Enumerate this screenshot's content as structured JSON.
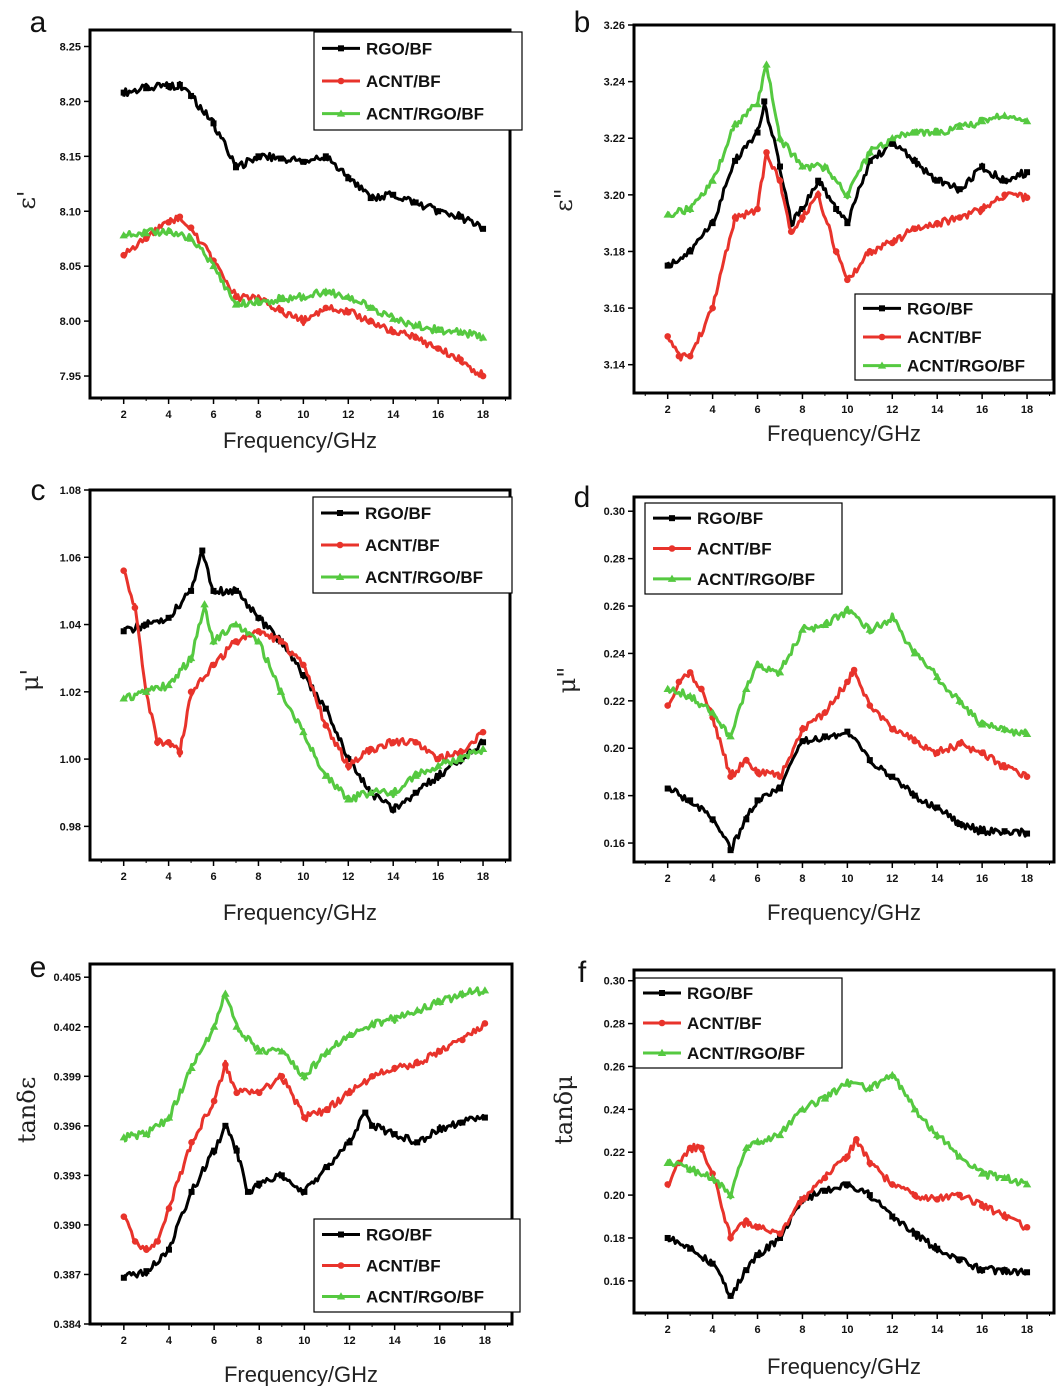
{
  "chart_data": [
    {
      "type": "line",
      "panel_label": "a",
      "xlabel": "Frequency/GHz",
      "ylabel": "ε'",
      "xlim": [
        0.5,
        19.2
      ],
      "ylim": [
        7.93,
        8.265
      ],
      "xticks": [
        2,
        4,
        6,
        8,
        10,
        12,
        14,
        16,
        18
      ],
      "yticks": [
        7.95,
        8.0,
        8.05,
        8.1,
        8.15,
        8.2,
        8.25
      ],
      "ytick_labels": [
        "7.95",
        "8.00",
        "8.05",
        "8.10",
        "8.15",
        "8.20",
        "8.25"
      ],
      "legend_position": "top-right",
      "series": [
        {
          "name": "RGO/BF",
          "color": "#000000",
          "marker": "square",
          "x": [
            2,
            3,
            4,
            4.5,
            5,
            6,
            7,
            8,
            9,
            10,
            11,
            12,
            13,
            14,
            15,
            16,
            17,
            18
          ],
          "y": [
            8.208,
            8.212,
            8.214,
            8.215,
            8.205,
            8.18,
            8.14,
            8.15,
            8.148,
            8.145,
            8.15,
            8.13,
            8.112,
            8.115,
            8.108,
            8.1,
            8.095,
            8.084
          ]
        },
        {
          "name": "ACNT/BF",
          "color": "#e8332b",
          "marker": "circle",
          "x": [
            2,
            3,
            4,
            4.5,
            5,
            6,
            7,
            8,
            9,
            10,
            11,
            12,
            13,
            14,
            15,
            16,
            17,
            18
          ],
          "y": [
            8.06,
            8.075,
            8.09,
            8.095,
            8.085,
            8.055,
            8.022,
            8.02,
            8.01,
            8.0,
            8.012,
            8.008,
            8.0,
            7.99,
            7.985,
            7.975,
            7.965,
            7.95
          ]
        },
        {
          "name": "ACNT/RGO/BF",
          "color": "#55c940",
          "marker": "triangle",
          "x": [
            2,
            3,
            4,
            5,
            6,
            7,
            8,
            9,
            10,
            11,
            12,
            13,
            14,
            15,
            16,
            17,
            18
          ],
          "y": [
            8.078,
            8.08,
            8.082,
            8.075,
            8.05,
            8.015,
            8.018,
            8.02,
            8.022,
            8.027,
            8.022,
            8.012,
            8.002,
            7.996,
            7.992,
            7.99,
            7.985
          ]
        }
      ]
    },
    {
      "type": "line",
      "panel_label": "b",
      "xlabel": "Frequency/GHz",
      "ylabel": "ε\"",
      "xlim": [
        0.5,
        19.2
      ],
      "ylim": [
        3.13,
        3.26
      ],
      "xticks": [
        2,
        4,
        6,
        8,
        10,
        12,
        14,
        16,
        18
      ],
      "yticks": [
        3.14,
        3.16,
        3.18,
        3.2,
        3.22,
        3.24,
        3.26
      ],
      "ytick_labels": [
        "3.14",
        "3.16",
        "3.18",
        "3.20",
        "3.22",
        "3.24",
        "3.26"
      ],
      "legend_position": "bottom-right",
      "series": [
        {
          "name": "RGO/BF",
          "color": "#000000",
          "marker": "square",
          "x": [
            2,
            3,
            4,
            5,
            6,
            6.3,
            7,
            7.5,
            8,
            8.7,
            9.5,
            10,
            11,
            12,
            13,
            14,
            15,
            16,
            17,
            18
          ],
          "y": [
            3.175,
            3.18,
            3.19,
            3.212,
            3.222,
            3.233,
            3.21,
            3.19,
            3.195,
            3.205,
            3.195,
            3.19,
            3.212,
            3.218,
            3.212,
            3.205,
            3.202,
            3.21,
            3.205,
            3.208
          ]
        },
        {
          "name": "ACNT/BF",
          "color": "#e8332b",
          "marker": "circle",
          "x": [
            2,
            2.5,
            3,
            4,
            5,
            6,
            6.4,
            7,
            7.5,
            8,
            8.7,
            9.5,
            10,
            11,
            12,
            13,
            14,
            15,
            16,
            17,
            18
          ],
          "y": [
            3.15,
            3.143,
            3.143,
            3.16,
            3.192,
            3.195,
            3.215,
            3.205,
            3.187,
            3.192,
            3.2,
            3.18,
            3.17,
            3.18,
            3.183,
            3.188,
            3.19,
            3.192,
            3.195,
            3.2,
            3.199
          ]
        },
        {
          "name": "ACNT/RGO/BF",
          "color": "#55c940",
          "marker": "triangle",
          "x": [
            2,
            3,
            4,
            5,
            6,
            6.4,
            7,
            8,
            9,
            10,
            11,
            12,
            13,
            14,
            15,
            16,
            17,
            18
          ],
          "y": [
            3.193,
            3.195,
            3.205,
            3.225,
            3.232,
            3.246,
            3.22,
            3.21,
            3.21,
            3.2,
            3.215,
            3.22,
            3.222,
            3.222,
            3.224,
            3.226,
            3.228,
            3.226
          ]
        }
      ]
    },
    {
      "type": "line",
      "panel_label": "c",
      "xlabel": "Frequency/GHz",
      "ylabel": "μ'",
      "xlim": [
        0.5,
        19.2
      ],
      "ylim": [
        0.97,
        1.08
      ],
      "xticks": [
        2,
        4,
        6,
        8,
        10,
        12,
        14,
        16,
        18
      ],
      "yticks": [
        0.98,
        1.0,
        1.02,
        1.04,
        1.06,
        1.08
      ],
      "ytick_labels": [
        "0.98",
        "1.00",
        "1.02",
        "1.04",
        "1.06",
        "1.08"
      ],
      "legend_position": "top-right",
      "series": [
        {
          "name": "RGO/BF",
          "color": "#000000",
          "marker": "square",
          "x": [
            2,
            3,
            4,
            5,
            5.5,
            6,
            7,
            8,
            9,
            10,
            11,
            12,
            13,
            14,
            15,
            16,
            17,
            18
          ],
          "y": [
            1.038,
            1.04,
            1.042,
            1.05,
            1.062,
            1.05,
            1.05,
            1.042,
            1.035,
            1.025,
            1.015,
            1.0,
            0.99,
            0.985,
            0.99,
            0.995,
            1.0,
            1.005
          ]
        },
        {
          "name": "ACNT/BF",
          "color": "#e8332b",
          "marker": "circle",
          "x": [
            2,
            2.5,
            3,
            3.5,
            4,
            4.5,
            5,
            6,
            7,
            8,
            9,
            10,
            11,
            12,
            13,
            14,
            15,
            16,
            17,
            18
          ],
          "y": [
            1.056,
            1.045,
            1.02,
            1.005,
            1.005,
            1.002,
            1.02,
            1.028,
            1.035,
            1.038,
            1.035,
            1.028,
            1.01,
            0.998,
            1.003,
            1.005,
            1.005,
            1.0,
            1.002,
            1.008
          ]
        },
        {
          "name": "ACNT/RGO/BF",
          "color": "#55c940",
          "marker": "triangle",
          "x": [
            2,
            3,
            4,
            5,
            5.6,
            6,
            7,
            8,
            9,
            10,
            11,
            12,
            13,
            14,
            15,
            16,
            17,
            18
          ],
          "y": [
            1.018,
            1.02,
            1.022,
            1.03,
            1.046,
            1.035,
            1.04,
            1.035,
            1.02,
            1.008,
            0.995,
            0.988,
            0.99,
            0.99,
            0.995,
            0.998,
            1.0,
            1.003
          ]
        }
      ]
    },
    {
      "type": "line",
      "panel_label": "d",
      "xlabel": "Frequency/GHz",
      "ylabel": "μ\"",
      "xlim": [
        0.5,
        19.2
      ],
      "ylim": [
        0.152,
        0.306
      ],
      "xticks": [
        2,
        4,
        6,
        8,
        10,
        12,
        14,
        16,
        18
      ],
      "yticks": [
        0.16,
        0.18,
        0.2,
        0.22,
        0.24,
        0.26,
        0.28,
        0.3
      ],
      "ytick_labels": [
        "0.16",
        "0.18",
        "0.20",
        "0.22",
        "0.24",
        "0.26",
        "0.28",
        "0.30"
      ],
      "legend_position": "top-left",
      "series": [
        {
          "name": "RGO/BF",
          "color": "#000000",
          "marker": "square",
          "x": [
            2,
            3,
            4,
            4.8,
            5.5,
            6,
            7,
            8,
            9,
            10,
            11,
            12,
            13,
            14,
            15,
            16,
            17,
            18
          ],
          "y": [
            0.183,
            0.178,
            0.17,
            0.157,
            0.17,
            0.178,
            0.183,
            0.203,
            0.205,
            0.207,
            0.195,
            0.188,
            0.18,
            0.175,
            0.168,
            0.165,
            0.165,
            0.164
          ]
        },
        {
          "name": "ACNT/BF",
          "color": "#e8332b",
          "marker": "circle",
          "x": [
            2,
            2.5,
            3,
            3.5,
            4,
            4.8,
            5.5,
            6,
            7,
            8,
            9,
            10,
            10.3,
            11,
            12,
            13,
            14,
            15,
            16,
            17,
            18
          ],
          "y": [
            0.218,
            0.228,
            0.232,
            0.225,
            0.213,
            0.188,
            0.195,
            0.19,
            0.188,
            0.208,
            0.215,
            0.228,
            0.233,
            0.218,
            0.208,
            0.203,
            0.198,
            0.202,
            0.198,
            0.192,
            0.188
          ]
        },
        {
          "name": "ACNT/RGO/BF",
          "color": "#55c940",
          "marker": "triangle",
          "x": [
            2,
            3,
            4,
            4.8,
            5.5,
            6,
            7,
            8,
            9,
            10,
            11,
            12,
            13,
            14,
            15,
            16,
            17,
            18
          ],
          "y": [
            0.225,
            0.222,
            0.215,
            0.205,
            0.225,
            0.235,
            0.232,
            0.25,
            0.252,
            0.258,
            0.25,
            0.255,
            0.24,
            0.23,
            0.22,
            0.21,
            0.208,
            0.206
          ]
        }
      ]
    },
    {
      "type": "line",
      "panel_label": "e",
      "xlabel": "Frequency/GHz",
      "ylabel": "tanδε",
      "xlim": [
        0.5,
        19.2
      ],
      "ylim": [
        0.384,
        0.4058
      ],
      "xticks": [
        2,
        4,
        6,
        8,
        10,
        12,
        14,
        16,
        18
      ],
      "yticks": [
        0.384,
        0.387,
        0.39,
        0.393,
        0.396,
        0.399,
        0.402,
        0.405
      ],
      "ytick_labels": [
        "0.384",
        "0.387",
        "0.390",
        "0.393",
        "0.396",
        "0.399",
        "0.402",
        "0.405"
      ],
      "legend_position": "bottom-right",
      "series": [
        {
          "name": "RGO/BF",
          "color": "#000000",
          "marker": "square",
          "x": [
            2,
            3,
            4,
            5,
            6,
            6.5,
            7,
            7.5,
            8,
            9,
            10,
            11,
            12,
            12.7,
            13,
            14,
            15,
            16,
            17,
            18
          ],
          "y": [
            0.3868,
            0.3872,
            0.3885,
            0.392,
            0.3945,
            0.396,
            0.3945,
            0.392,
            0.3925,
            0.393,
            0.392,
            0.3935,
            0.395,
            0.3968,
            0.396,
            0.3955,
            0.395,
            0.3958,
            0.3962,
            0.3965
          ]
        },
        {
          "name": "ACNT/BF",
          "color": "#e8332b",
          "marker": "circle",
          "x": [
            2,
            2.5,
            3,
            3.5,
            4,
            5,
            6,
            6.5,
            7,
            8,
            9,
            10,
            11,
            12,
            13,
            14,
            15,
            16,
            17,
            18
          ],
          "y": [
            0.3905,
            0.389,
            0.3885,
            0.389,
            0.391,
            0.395,
            0.3975,
            0.3997,
            0.398,
            0.398,
            0.399,
            0.3965,
            0.397,
            0.398,
            0.399,
            0.3995,
            0.3998,
            0.4005,
            0.4012,
            0.4022
          ]
        },
        {
          "name": "ACNT/RGO/BF",
          "color": "#55c940",
          "marker": "triangle",
          "x": [
            2,
            3,
            4,
            5,
            6,
            6.5,
            7,
            8,
            9,
            10,
            11,
            12,
            13,
            14,
            15,
            16,
            17,
            18
          ],
          "y": [
            0.3953,
            0.3955,
            0.3965,
            0.3995,
            0.402,
            0.404,
            0.402,
            0.4005,
            0.4005,
            0.399,
            0.4005,
            0.4015,
            0.4022,
            0.4025,
            0.403,
            0.4035,
            0.404,
            0.4042
          ]
        }
      ]
    },
    {
      "type": "line",
      "panel_label": "f",
      "xlabel": "Frequency/GHz",
      "ylabel": "tanδμ",
      "xlim": [
        0.5,
        19.2
      ],
      "ylim": [
        0.145,
        0.305
      ],
      "xticks": [
        2,
        4,
        6,
        8,
        10,
        12,
        14,
        16,
        18
      ],
      "yticks": [
        0.16,
        0.18,
        0.2,
        0.22,
        0.24,
        0.26,
        0.28,
        0.3
      ],
      "ytick_labels": [
        "0.16",
        "0.18",
        "0.20",
        "0.22",
        "0.24",
        "0.26",
        "0.28",
        "0.30"
      ],
      "legend_position": "top-left",
      "series": [
        {
          "name": "RGO/BF",
          "color": "#000000",
          "marker": "square",
          "x": [
            2,
            3,
            4,
            4.8,
            5.5,
            6,
            7,
            8,
            9,
            10,
            11,
            12,
            13,
            14,
            15,
            16,
            17,
            18
          ],
          "y": [
            0.18,
            0.175,
            0.168,
            0.153,
            0.165,
            0.172,
            0.18,
            0.198,
            0.202,
            0.205,
            0.2,
            0.19,
            0.182,
            0.175,
            0.17,
            0.165,
            0.165,
            0.164
          ]
        },
        {
          "name": "ACNT/BF",
          "color": "#e8332b",
          "marker": "circle",
          "x": [
            2,
            2.5,
            3,
            3.5,
            4,
            4.8,
            5.5,
            6,
            7,
            8,
            9,
            10,
            10.4,
            11,
            12,
            13,
            14,
            15,
            16,
            17,
            18
          ],
          "y": [
            0.205,
            0.215,
            0.222,
            0.222,
            0.21,
            0.18,
            0.188,
            0.185,
            0.182,
            0.198,
            0.208,
            0.218,
            0.226,
            0.215,
            0.205,
            0.2,
            0.198,
            0.2,
            0.195,
            0.19,
            0.185
          ]
        },
        {
          "name": "ACNT/RGO/BF",
          "color": "#55c940",
          "marker": "triangle",
          "x": [
            2,
            3,
            4,
            4.8,
            5.5,
            6,
            7,
            8,
            9,
            10,
            11,
            12,
            13,
            14,
            15,
            16,
            17,
            18
          ],
          "y": [
            0.215,
            0.212,
            0.208,
            0.2,
            0.222,
            0.225,
            0.228,
            0.24,
            0.245,
            0.252,
            0.25,
            0.256,
            0.24,
            0.228,
            0.218,
            0.21,
            0.208,
            0.205
          ]
        }
      ]
    }
  ]
}
